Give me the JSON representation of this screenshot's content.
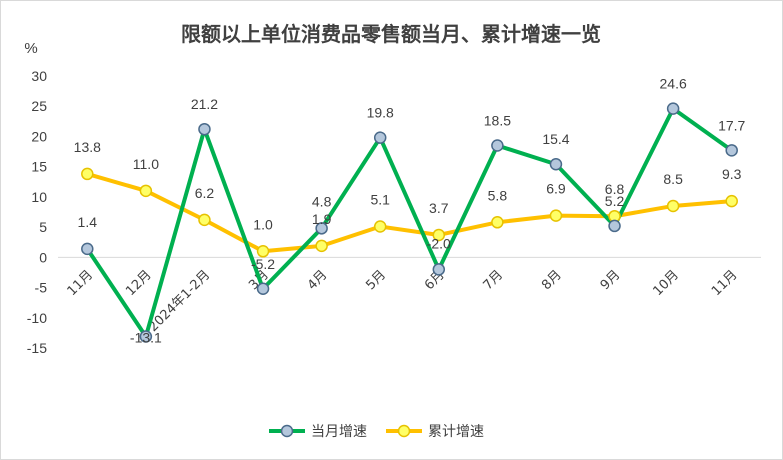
{
  "chart_data": {
    "type": "line",
    "title": "限额以上单位消费品零售额当月、累计增速一览",
    "ylabel": "%",
    "ylim": [
      -15,
      30
    ],
    "yticks": [
      30,
      25,
      20,
      15,
      10,
      5,
      0,
      -5,
      -10,
      -15
    ],
    "categories": [
      "11月",
      "12月",
      "2024年1-2月",
      "3月",
      "4月",
      "5月",
      "6月",
      "7月",
      "8月",
      "9月",
      "10月",
      "11月"
    ],
    "series": [
      {
        "name": "当月增速",
        "color": "#00b050",
        "marker_fill": "#b4c7dc",
        "marker_stroke": "#4a6a8a",
        "values": [
          1.4,
          -13.1,
          21.2,
          -5.2,
          4.8,
          19.8,
          -2.0,
          18.5,
          15.4,
          5.2,
          24.6,
          17.7
        ],
        "labels": [
          "1.4",
          "-13.1",
          "21.2",
          "-5.2",
          "4.8",
          "19.8",
          "-2.0",
          "18.5",
          "15.4",
          "5.2",
          "24.6",
          "17.7"
        ]
      },
      {
        "name": "累计增速",
        "color": "#ffc000",
        "marker_fill": "#ffff66",
        "marker_stroke": "#e6c200",
        "values": [
          13.8,
          11.0,
          6.2,
          1.0,
          1.9,
          5.1,
          3.7,
          5.8,
          6.9,
          6.8,
          8.5,
          9.3
        ],
        "labels": [
          "13.8",
          "11.0",
          "6.2",
          "1.0",
          "1.9",
          "5.1",
          "3.7",
          "5.8",
          "6.9",
          "6.8",
          "8.5",
          "9.3"
        ]
      }
    ],
    "legend": "bottom",
    "grid": false
  }
}
